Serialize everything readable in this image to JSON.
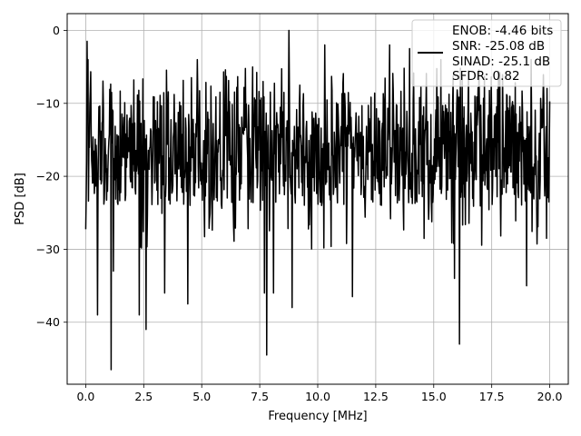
{
  "chart_data": {
    "type": "line",
    "title": "",
    "xlabel": "Frequency [MHz]",
    "ylabel": "PSD [dB]",
    "xlim": [
      -0.8,
      20.8
    ],
    "ylim": [
      -48.5,
      2.3
    ],
    "xticks": [
      0.0,
      2.5,
      5.0,
      7.5,
      10.0,
      12.5,
      15.0,
      17.5,
      20.0
    ],
    "xtick_labels": [
      "0.0",
      "2.5",
      "5.0",
      "7.5",
      "10.0",
      "12.5",
      "15.0",
      "17.5",
      "20.0"
    ],
    "yticks": [
      0,
      -10,
      -20,
      -30,
      -40
    ],
    "ytick_labels": [
      "0",
      "−10",
      "−20",
      "−30",
      "−40"
    ],
    "grid": true,
    "legend_position": "top-right",
    "legend": [
      "ENOB: -4.46 bits",
      "SNR: -25.08 dB",
      "SINAD: -25.1 dB",
      "SFDR: 0.82"
    ],
    "series": [
      {
        "color": "#000000",
        "x_range": [
          0,
          20
        ],
        "n_points": 1024,
        "noise_band_db": [
          -24,
          -8
        ],
        "peaks": [
          [
            0.05,
            -1.5
          ],
          [
            0.1,
            -4.0
          ],
          [
            4.8,
            -4.0
          ],
          [
            8.75,
            0.0
          ],
          [
            10.3,
            -2.0
          ],
          [
            13.1,
            -2.0
          ],
          [
            13.95,
            -2.5
          ],
          [
            15.3,
            -4.0
          ],
          [
            16.5,
            -5.5
          ],
          [
            19.2,
            -4.0
          ]
        ],
        "dips": [
          [
            0.5,
            -39.0
          ],
          [
            1.1,
            -46.5
          ],
          [
            1.2,
            -33.0
          ],
          [
            2.3,
            -39.0
          ],
          [
            2.6,
            -41.0
          ],
          [
            3.4,
            -36.0
          ],
          [
            4.4,
            -37.5
          ],
          [
            7.7,
            -36.0
          ],
          [
            7.8,
            -44.5
          ],
          [
            8.1,
            -36.0
          ],
          [
            8.9,
            -38.0
          ],
          [
            11.5,
            -36.5
          ],
          [
            16.1,
            -43.0
          ],
          [
            15.9,
            -34.0
          ],
          [
            19.0,
            -35.0
          ]
        ]
      }
    ]
  }
}
